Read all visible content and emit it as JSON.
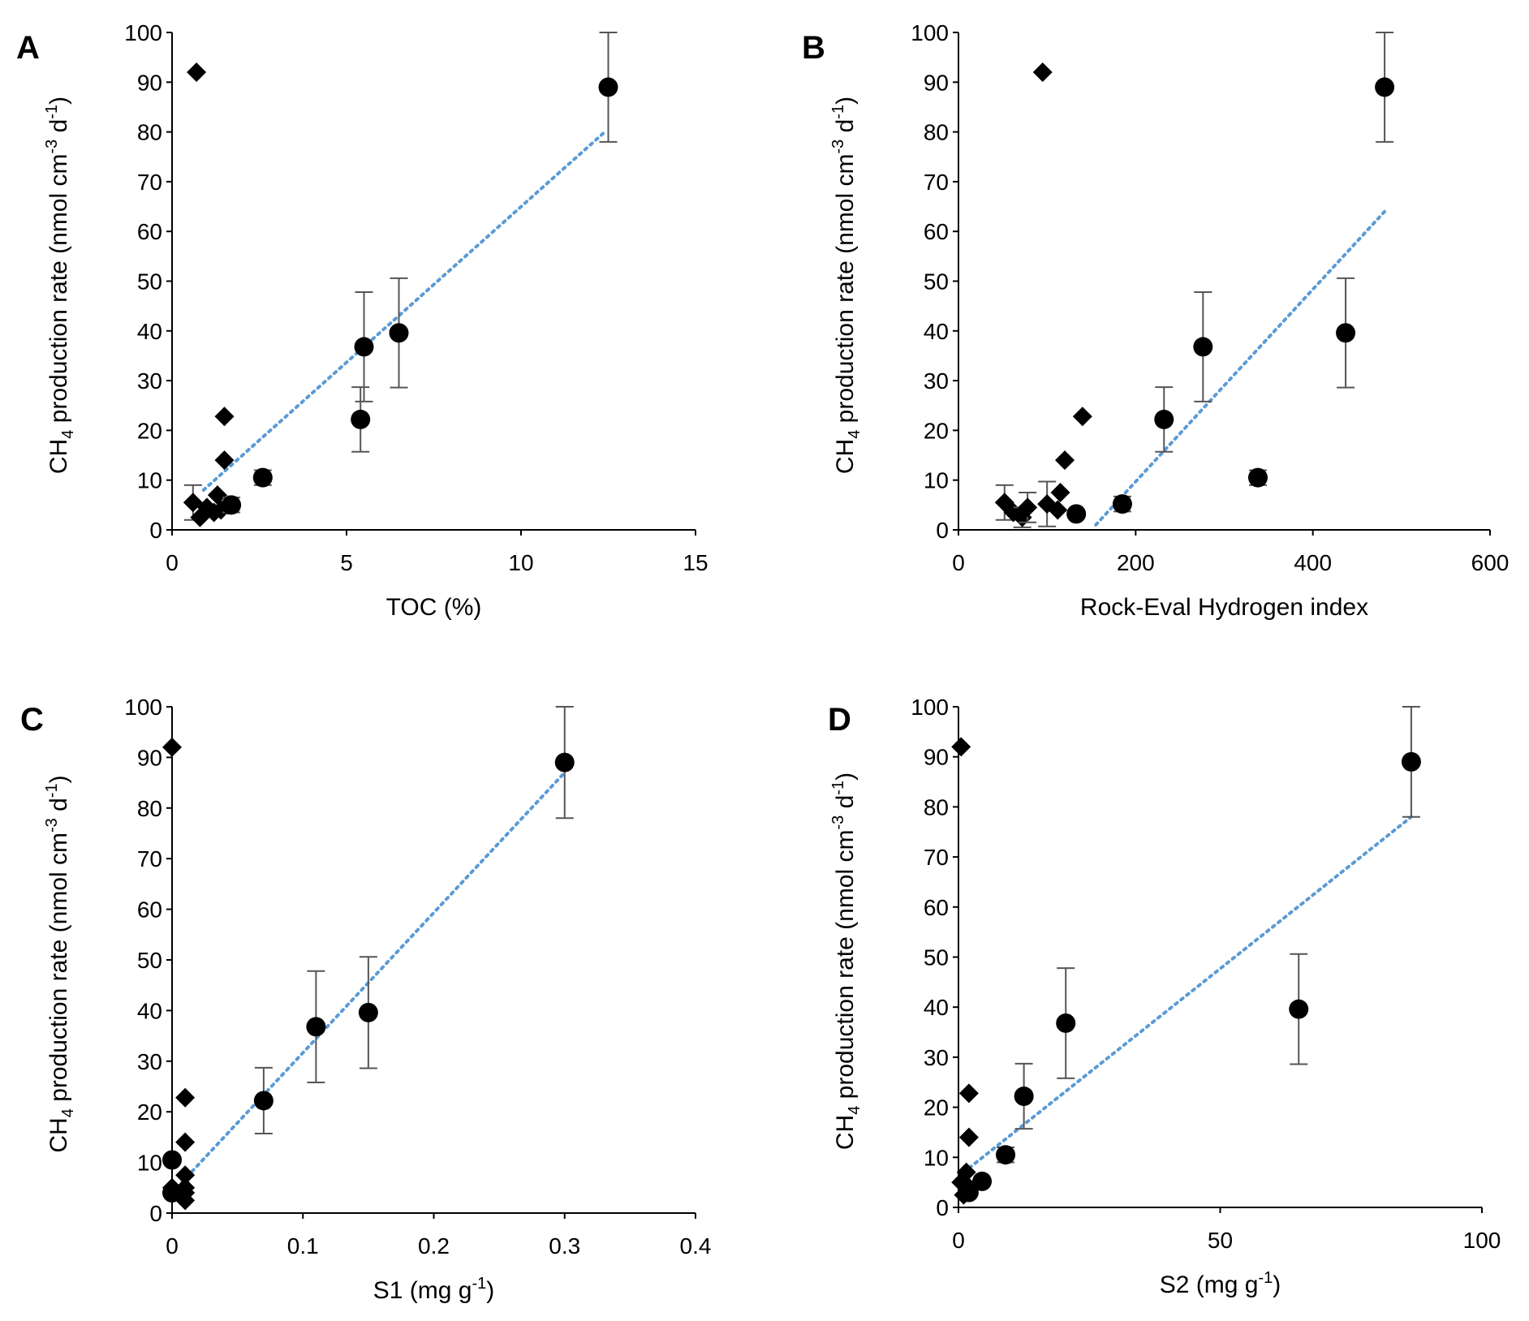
{
  "chart_data": [
    {
      "type": "scatter",
      "panel_label": "A",
      "xlabel": "TOC (%)",
      "ylabel": {
        "main": "CH",
        "sub": "4",
        "rest": " production rate (nmol cm",
        "sup1": "-3",
        "mid": " d",
        "sup2": "-1",
        "end": ")"
      },
      "xlim": [
        0,
        15
      ],
      "ylim": [
        0,
        100
      ],
      "xticks": [
        0,
        5,
        10,
        15
      ],
      "xtick_labels": [
        "0",
        "5",
        "10",
        "15"
      ],
      "yticks": [
        0,
        10,
        20,
        30,
        40,
        50,
        60,
        70,
        80,
        90,
        100
      ],
      "ytick_labels": [
        "0",
        "10",
        "20",
        "30",
        "40",
        "50",
        "60",
        "70",
        "80",
        "90",
        "100"
      ],
      "series": [
        {
          "name": "diamonds",
          "marker": "diamond",
          "points": [
            {
              "x": 0.7,
              "y": 92
            },
            {
              "x": 0.6,
              "y": 5.5,
              "err": 3.5
            },
            {
              "x": 0.8,
              "y": 2.5
            },
            {
              "x": 1.0,
              "y": 4.5
            },
            {
              "x": 1.2,
              "y": 3.5
            },
            {
              "x": 1.3,
              "y": 7
            },
            {
              "x": 1.4,
              "y": 4
            },
            {
              "x": 1.5,
              "y": 22.8
            },
            {
              "x": 1.5,
              "y": 14
            },
            {
              "x": 1.6,
              "y": 5
            }
          ]
        },
        {
          "name": "circles",
          "marker": "circle",
          "points": [
            {
              "x": 1.7,
              "y": 5,
              "err": 1.5
            },
            {
              "x": 2.6,
              "y": 10.5,
              "err": 1.5
            },
            {
              "x": 5.4,
              "y": 22.2,
              "err": 6.5
            },
            {
              "x": 5.5,
              "y": 36.8,
              "err": 11
            },
            {
              "x": 6.5,
              "y": 39.6,
              "err": 11
            },
            {
              "x": 12.5,
              "y": 89,
              "err": 11
            }
          ]
        }
      ],
      "trendline": {
        "x": [
          0.9,
          12.4
        ],
        "y": [
          8,
          80
        ]
      }
    },
    {
      "type": "scatter",
      "panel_label": "B",
      "xlabel": "Rock-Eval Hydrogen index",
      "ylabel": {
        "main": "CH",
        "sub": "4",
        "rest": " production rate (nmol cm",
        "sup1": "-3",
        "mid": " d",
        "sup2": "-1",
        "end": ")"
      },
      "xlim": [
        0,
        600
      ],
      "ylim": [
        0,
        100
      ],
      "xticks": [
        0,
        200,
        400,
        600
      ],
      "xtick_labels": [
        "0",
        "200",
        "400",
        "600"
      ],
      "yticks": [
        0,
        10,
        20,
        30,
        40,
        50,
        60,
        70,
        80,
        90,
        100
      ],
      "ytick_labels": [
        "0",
        "10",
        "20",
        "30",
        "40",
        "50",
        "60",
        "70",
        "80",
        "90",
        "100"
      ],
      "series": [
        {
          "name": "diamonds",
          "marker": "diamond",
          "points": [
            {
              "x": 95,
              "y": 92
            },
            {
              "x": 52,
              "y": 5.5,
              "err": 3.5
            },
            {
              "x": 62,
              "y": 3.5
            },
            {
              "x": 72,
              "y": 2.5,
              "err": 2
            },
            {
              "x": 78,
              "y": 4.5,
              "err": 3
            },
            {
              "x": 100,
              "y": 5.2,
              "err": 4.5
            },
            {
              "x": 112,
              "y": 4
            },
            {
              "x": 115,
              "y": 7.5
            },
            {
              "x": 120,
              "y": 14
            },
            {
              "x": 140,
              "y": 22.8
            }
          ]
        },
        {
          "name": "circles",
          "marker": "circle",
          "points": [
            {
              "x": 133,
              "y": 3.2
            },
            {
              "x": 185,
              "y": 5.2,
              "err": 1.5
            },
            {
              "x": 232,
              "y": 22.2,
              "err": 6.5
            },
            {
              "x": 276,
              "y": 36.8,
              "err": 11
            },
            {
              "x": 338,
              "y": 10.5,
              "err": 1.5
            },
            {
              "x": 437,
              "y": 39.6,
              "err": 11
            },
            {
              "x": 481,
              "y": 89,
              "err": 11
            }
          ]
        }
      ],
      "trendline": {
        "x": [
          155,
          481
        ],
        "y": [
          1,
          64
        ]
      }
    },
    {
      "type": "scatter",
      "panel_label": "C",
      "xlabel": {
        "main": "S1 (mg g",
        "sup": "-1",
        "end": ")"
      },
      "ylabel": {
        "main": "CH",
        "sub": "4",
        "rest": " production rate (nmol cm",
        "sup1": "-3",
        "mid": " d",
        "sup2": "-1",
        "end": ")"
      },
      "xlim": [
        0,
        0.4
      ],
      "ylim": [
        0,
        100
      ],
      "xticks": [
        0,
        0.1,
        0.2,
        0.3,
        0.4
      ],
      "xtick_labels": [
        "0",
        "0.1",
        "0.2",
        "0.3",
        "0.4"
      ],
      "yticks": [
        0,
        10,
        20,
        30,
        40,
        50,
        60,
        70,
        80,
        90,
        100
      ],
      "ytick_labels": [
        "0",
        "10",
        "20",
        "30",
        "40",
        "50",
        "60",
        "70",
        "80",
        "90",
        "100"
      ],
      "series": [
        {
          "name": "diamonds",
          "marker": "diamond",
          "points": [
            {
              "x": 0.0,
              "y": 92
            },
            {
              "x": 0.0,
              "y": 5
            },
            {
              "x": 0.01,
              "y": 22.8
            },
            {
              "x": 0.01,
              "y": 14
            },
            {
              "x": 0.01,
              "y": 7.5
            },
            {
              "x": 0.01,
              "y": 5
            },
            {
              "x": 0.01,
              "y": 4
            },
            {
              "x": 0.01,
              "y": 2.5
            }
          ]
        },
        {
          "name": "circles",
          "marker": "circle",
          "points": [
            {
              "x": 0.0,
              "y": 10.5
            },
            {
              "x": 0.0,
              "y": 4
            },
            {
              "x": 0.07,
              "y": 22.2,
              "err": 6.5
            },
            {
              "x": 0.11,
              "y": 36.8,
              "err": 11
            },
            {
              "x": 0.15,
              "y": 39.6,
              "err": 11
            },
            {
              "x": 0.3,
              "y": 89,
              "err": 11
            }
          ]
        }
      ],
      "trendline": {
        "x": [
          0,
          0.3
        ],
        "y": [
          4,
          87
        ]
      }
    },
    {
      "type": "scatter",
      "panel_label": "D",
      "xlabel": {
        "main": "S2 (mg g",
        "sup": "-1",
        "end": ")"
      },
      "ylabel": {
        "main": "CH",
        "sub": "4",
        "rest": " production rate (nmol cm",
        "sup1": "-3",
        "mid": " d",
        "sup2": "-1",
        "end": ")"
      },
      "xlim": [
        0,
        100
      ],
      "ylim": [
        0,
        100
      ],
      "xticks": [
        0,
        50,
        100
      ],
      "xtick_labels": [
        "0",
        "50",
        "100"
      ],
      "yticks": [
        0,
        10,
        20,
        30,
        40,
        50,
        60,
        70,
        80,
        90,
        100
      ],
      "ytick_labels": [
        "0",
        "10",
        "20",
        "30",
        "40",
        "50",
        "60",
        "70",
        "80",
        "90",
        "100"
      ],
      "series": [
        {
          "name": "diamonds",
          "marker": "diamond",
          "points": [
            {
              "x": 0.5,
              "y": 92
            },
            {
              "x": 0.5,
              "y": 5
            },
            {
              "x": 1,
              "y": 2.5
            },
            {
              "x": 1.5,
              "y": 7
            },
            {
              "x": 2,
              "y": 22.8
            },
            {
              "x": 2,
              "y": 14
            },
            {
              "x": 2,
              "y": 4
            }
          ]
        },
        {
          "name": "circles",
          "marker": "circle",
          "points": [
            {
              "x": 2,
              "y": 3
            },
            {
              "x": 4.5,
              "y": 5.2
            },
            {
              "x": 9,
              "y": 10.5,
              "err": 1.5
            },
            {
              "x": 12.5,
              "y": 22.2,
              "err": 6.5
            },
            {
              "x": 20.5,
              "y": 36.8,
              "err": 11
            },
            {
              "x": 65,
              "y": 39.6,
              "err": 11
            },
            {
              "x": 86.5,
              "y": 89,
              "err": 11
            }
          ]
        }
      ],
      "trendline": {
        "x": [
          1,
          86.5
        ],
        "y": [
          7,
          78
        ]
      }
    }
  ]
}
